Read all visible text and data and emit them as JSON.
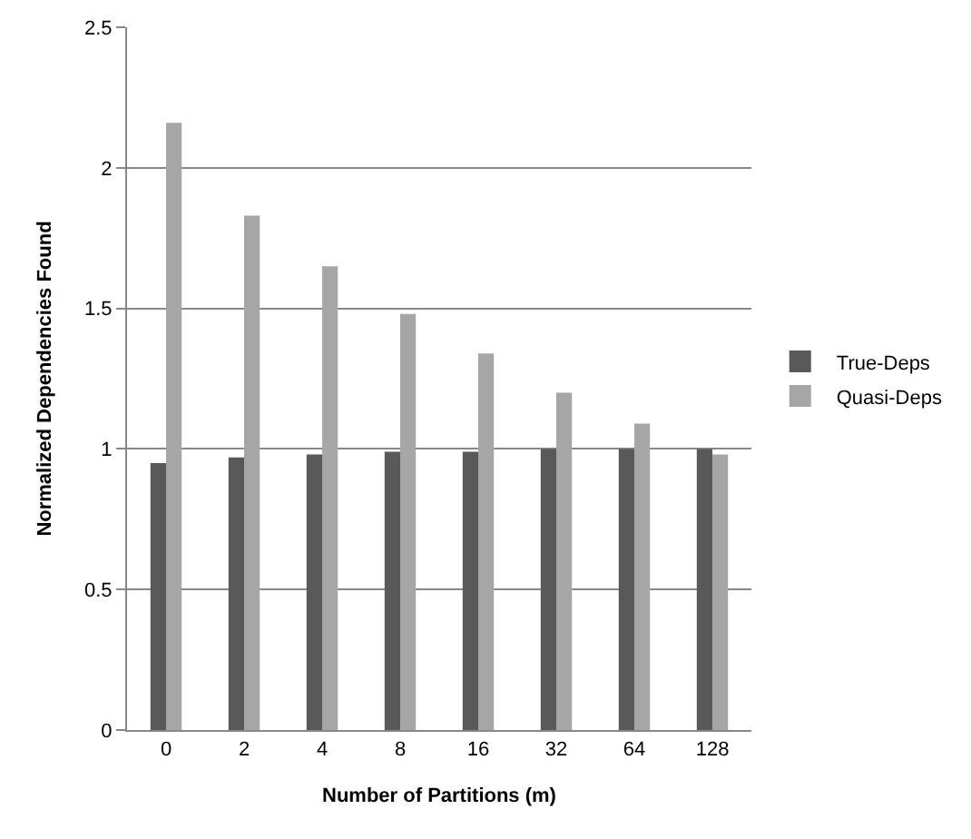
{
  "chart_data": {
    "type": "bar",
    "xlabel": "Number of Partitions (m)",
    "ylabel": "Normalized Dependencies Found",
    "categories": [
      "0",
      "2",
      "4",
      "8",
      "16",
      "32",
      "64",
      "128"
    ],
    "series": [
      {
        "name": "True-Deps",
        "color": "#595959",
        "values": [
          0.95,
          0.97,
          0.98,
          0.99,
          0.99,
          1.0,
          1.0,
          1.0
        ]
      },
      {
        "name": "Quasi-Deps",
        "color": "#a6a6a6",
        "values": [
          2.16,
          1.83,
          1.65,
          1.48,
          1.34,
          1.2,
          1.09,
          0.98
        ]
      }
    ],
    "ylim": [
      0,
      2.5
    ],
    "yticks": [
      0,
      0.5,
      1,
      1.5,
      2,
      2.5
    ],
    "grid": "y",
    "legend": "right"
  }
}
